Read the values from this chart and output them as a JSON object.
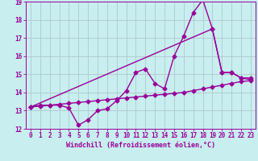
{
  "xlabel": "Windchill (Refroidissement éolien,°C)",
  "background_color": "#c8eef0",
  "line_color": "#990099",
  "grid_color": "#b0c8cc",
  "xlim": [
    -0.5,
    23.5
  ],
  "ylim": [
    12,
    19
  ],
  "yticks": [
    12,
    13,
    14,
    15,
    16,
    17,
    18,
    19
  ],
  "xticks": [
    0,
    1,
    2,
    3,
    4,
    5,
    6,
    7,
    8,
    9,
    10,
    11,
    12,
    13,
    14,
    15,
    16,
    17,
    18,
    19,
    20,
    21,
    22,
    23
  ],
  "curve1_x": [
    0,
    1,
    2,
    3,
    4,
    5,
    6,
    7,
    8,
    9,
    10,
    11,
    12,
    13,
    14,
    15,
    16,
    17,
    18,
    19,
    20,
    21,
    22,
    23
  ],
  "curve1_y": [
    13.2,
    13.3,
    13.3,
    13.3,
    13.15,
    12.2,
    12.5,
    13.0,
    13.1,
    13.55,
    14.1,
    15.1,
    15.3,
    14.5,
    14.2,
    16.0,
    17.1,
    18.4,
    19.1,
    17.5,
    15.1,
    15.1,
    14.8,
    14.8
  ],
  "curve2_x": [
    0,
    1,
    2,
    3,
    4,
    5,
    6,
    7,
    8,
    9,
    10,
    11,
    12,
    13,
    14,
    15,
    16,
    17,
    18,
    19,
    20,
    21,
    22,
    23
  ],
  "curve2_y": [
    13.2,
    13.25,
    13.3,
    13.35,
    13.4,
    13.45,
    13.5,
    13.55,
    13.6,
    13.65,
    13.7,
    13.75,
    13.8,
    13.85,
    13.9,
    13.95,
    14.0,
    14.1,
    14.2,
    14.3,
    14.4,
    14.5,
    14.6,
    14.65
  ],
  "curve3_x": [
    0,
    19,
    20,
    21,
    22,
    23
  ],
  "curve3_y": [
    13.2,
    17.5,
    15.1,
    15.1,
    14.8,
    14.7
  ],
  "line_width": 1.0,
  "marker": "D",
  "marker_size": 2.5,
  "tick_fontsize": 5.5,
  "label_fontsize": 6.0
}
